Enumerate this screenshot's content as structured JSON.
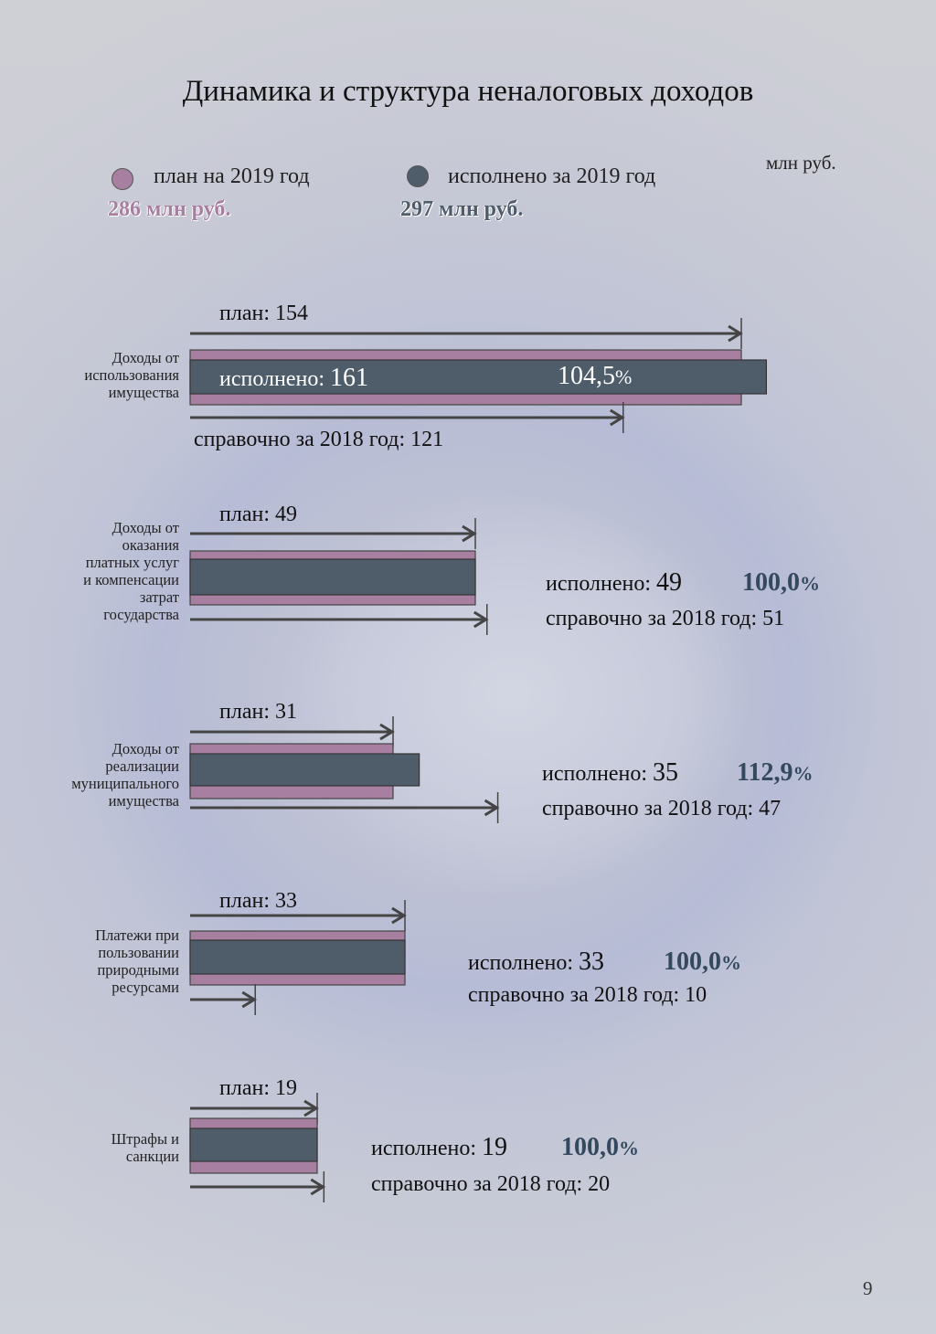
{
  "title": "Динамика и структура неналоговых доходов",
  "unit": "млн руб.",
  "legend": {
    "plan": {
      "label": "план на 2019 год",
      "total": "286 млн руб.",
      "color": "#a77fa1"
    },
    "actual": {
      "label": "исполнено за 2019 год",
      "total": "297 млн руб.",
      "color": "#4f5d6b"
    }
  },
  "chart_data": {
    "type": "bar",
    "orientation": "horizontal",
    "series": [
      {
        "name": "план на 2019 год",
        "values": [
          154,
          49,
          31,
          33,
          19
        ]
      },
      {
        "name": "исполнено за 2019 год",
        "values": [
          161,
          49,
          35,
          33,
          19
        ]
      },
      {
        "name": "справочно за 2018 год",
        "values": [
          121,
          51,
          47,
          10,
          20
        ]
      }
    ],
    "categories": [
      "Доходы от использования имущества",
      "Доходы от оказания платных услуг и компенсации затрат государства",
      "Доходы от реализации муниципального имущества",
      "Платежи при пользовании природными ресурсами",
      "Штрафы и санкции"
    ]
  },
  "rows": [
    {
      "label_lines": [
        "Доходы от",
        "использования",
        "имущества"
      ],
      "plan_text": "план: 154",
      "exec_prefix": "исполнено: ",
      "exec_value": "161",
      "pct_value": "104,5",
      "pct_sign": "%",
      "ref_text": "справочно за 2018 год: 121"
    },
    {
      "label_lines": [
        "Доходы от",
        "оказания",
        "платных услуг",
        "и компенсации",
        "затрат",
        "государства"
      ],
      "plan_text": "план: 49",
      "exec_prefix": "исполнено: ",
      "exec_value": "49",
      "pct_value": "100,0",
      "pct_sign": "%",
      "ref_text": "справочно за 2018 год: 51"
    },
    {
      "label_lines": [
        "Доходы от",
        "реализации",
        "муниципального",
        "имущества"
      ],
      "plan_text": "план: 31",
      "exec_prefix": "исполнено: ",
      "exec_value": "35",
      "pct_value": "112,9",
      "pct_sign": "%",
      "ref_text": "справочно за 2018 год: 47"
    },
    {
      "label_lines": [
        "Платежи при",
        "пользовании",
        "природными",
        "ресурсами"
      ],
      "plan_text": "план: 33",
      "exec_prefix": "исполнено: ",
      "exec_value": "33",
      "pct_value": "100,0",
      "pct_sign": "%",
      "ref_text": "справочно за 2018 год: 10"
    },
    {
      "label_lines": [
        "Штрафы и",
        "санкции"
      ],
      "plan_text": "план: 19",
      "exec_prefix": "исполнено: ",
      "exec_value": "19",
      "pct_value": "100,0",
      "pct_sign": "%",
      "ref_text": "справочно за 2018 год: 20"
    }
  ],
  "page_number": "9"
}
